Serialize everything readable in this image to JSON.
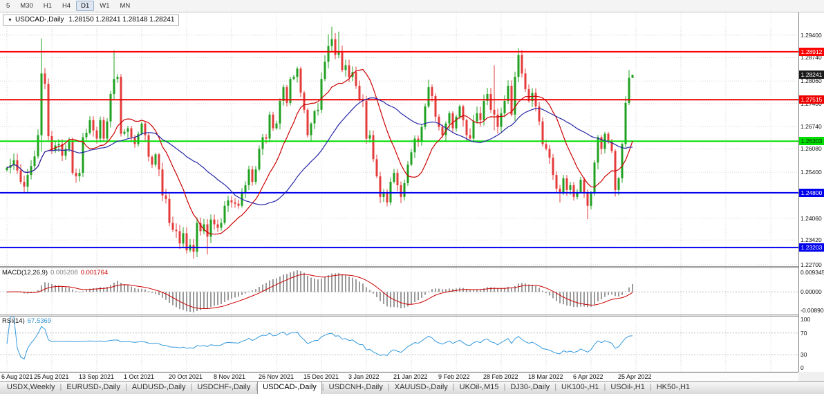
{
  "toolbar": {
    "timeframes": [
      {
        "label": "5",
        "active": false
      },
      {
        "label": "M30",
        "active": false
      },
      {
        "label": "H1",
        "active": false
      },
      {
        "label": "H4",
        "active": false
      },
      {
        "label": "D1",
        "active": true
      },
      {
        "label": "W1",
        "active": false
      },
      {
        "label": "MN",
        "active": false
      }
    ]
  },
  "chart": {
    "title_symbol": "USDCAD-,Daily",
    "ohlc_text": "1.28150 1.28241 1.28148 1.28241",
    "y_ticks": [
      "1.29400",
      "1.28740",
      "1.28060",
      "1.27400",
      "1.26740",
      "1.26080",
      "1.25400",
      "1.24060",
      "1.23420",
      "1.22700"
    ],
    "levels": [
      {
        "label": "1.28912",
        "value": 1.28912,
        "color": "#ff0000",
        "text_color": "#ffffff",
        "width": 2
      },
      {
        "label": "1.27515",
        "value": 1.27515,
        "color": "#ee0000",
        "text_color": "#ffffff",
        "width": 2
      },
      {
        "label": "1.26303",
        "value": 1.26303,
        "color": "#00dd00",
        "text_color": "#003300",
        "width": 2
      },
      {
        "label": "1.24800",
        "value": 1.248,
        "color": "#0000ee",
        "text_color": "#ffffff",
        "width": 2
      },
      {
        "label": "1.23203",
        "value": 1.23203,
        "color": "#0000ee",
        "text_color": "#ffffff",
        "width": 2
      }
    ],
    "current_price": {
      "label": "1.28241",
      "value": 1.28241,
      "color": "#1a1a1a",
      "text_color": "#ffffff"
    }
  },
  "indicators": {
    "macd": {
      "label": "MACD(12,26,9)",
      "value_main": "0.005208",
      "value_signal": "0.001764",
      "params": [
        12,
        26,
        9
      ],
      "ticks": [
        "0.009345",
        "0.00000",
        "-0.00890"
      ]
    },
    "rsi": {
      "label": "RSI(14)",
      "value": "67.5369",
      "period": 14,
      "ticks": [
        "100",
        "70",
        "30",
        "0"
      ],
      "levels": [
        70,
        30
      ]
    }
  },
  "x_labels": [
    "6 Aug 2021",
    "25 Aug 2021",
    "13 Sep 2021",
    "1 Oct 2021",
    "20 Oct 2021",
    "8 Nov 2021",
    "26 Nov 2021",
    "15 Dec 2021",
    "3 Jan 2022",
    "21 Jan 2022",
    "9 Feb 2022",
    "28 Feb 2022",
    "18 Mar 2022",
    "6 Apr 2022",
    "25 Apr 2022"
  ],
  "tabs": [
    {
      "label": "USDX,Weekly",
      "active": false
    },
    {
      "label": "EURUSD-,Daily",
      "active": false
    },
    {
      "label": "AUDUSD-,Daily",
      "active": false
    },
    {
      "label": "USDCHF-,Daily",
      "active": false
    },
    {
      "label": "USDCAD-,Daily",
      "active": true
    },
    {
      "label": "USDCNH-,Daily",
      "active": false
    },
    {
      "label": "XAUUSD-,Daily",
      "active": false
    },
    {
      "label": "UKOil-,M15",
      "active": false
    },
    {
      "label": "DJ30-,Daily",
      "active": false
    },
    {
      "label": "UK100-,H1",
      "active": false
    },
    {
      "label": "USOil-,H1",
      "active": false
    },
    {
      "label": "HK50-,H1",
      "active": false
    }
  ],
  "colors": {
    "bull": "#21a121",
    "bear": "#e43b3b",
    "ma_fast": "#cc0000",
    "ma_slow": "#2525a8",
    "macd_hist": "#9a9a9a",
    "macd_signal": "#cc0000",
    "rsi": "#3399dd",
    "grid": "#d6d6d6",
    "sublevel": "#bdbdbd"
  },
  "chart_data": {
    "type": "candlestick",
    "symbol": "USDCAD-",
    "timeframe": "Daily",
    "last_bar": {
      "open": 1.2815,
      "high": 1.28241,
      "low": 1.28148,
      "close": 1.28241
    },
    "price_range": {
      "top": 1.3006,
      "bottom": 1.2266
    },
    "first_open": 1.2546,
    "closes": [
      1.2553,
      1.256,
      1.2575,
      1.2545,
      1.2512,
      1.2498,
      1.2532,
      1.2558,
      1.2586,
      1.2648,
      1.2828,
      1.2798,
      1.2645,
      1.2602,
      1.2618,
      1.2622,
      1.2588,
      1.2608,
      1.2628,
      1.2538,
      1.2528,
      1.2538,
      1.2642,
      1.2655,
      1.2692,
      1.2662,
      1.2638,
      1.2692,
      1.2638,
      1.2688,
      1.2768,
      1.2812,
      1.2818,
      1.2652,
      1.2658,
      1.2668,
      1.2642,
      1.2622,
      1.2652,
      1.2682,
      1.2648,
      1.2585,
      1.2562,
      1.2592,
      1.2548,
      1.2472,
      1.2462,
      1.2392,
      1.2372,
      1.2368,
      1.2332,
      1.2362,
      1.2312,
      1.2328,
      1.2308,
      1.2392,
      1.2368,
      1.2388,
      1.2352,
      1.2402,
      1.2388,
      1.2378,
      1.2392,
      1.2442,
      1.2458,
      1.2452,
      1.2448,
      1.2442,
      1.2482,
      1.2502,
      1.2548,
      1.2512,
      1.2548,
      1.2608,
      1.2642,
      1.2638,
      1.2708,
      1.2668,
      1.2682,
      1.2748,
      1.2788,
      1.2742,
      1.2812,
      1.2818,
      1.2842,
      1.2772,
      1.2722,
      1.2648,
      1.2682,
      1.2718,
      1.2722,
      1.2812,
      1.2862,
      1.2908,
      1.2928,
      1.2882,
      1.2892,
      1.2838,
      1.2852,
      1.2818,
      1.2832,
      1.2792,
      1.2752,
      1.2748,
      1.2638,
      1.2648,
      1.2578,
      1.2528,
      1.2468,
      1.2478,
      1.2452,
      1.2512,
      1.2538,
      1.2502,
      1.2468,
      1.2508,
      1.2562,
      1.2598,
      1.2638,
      1.2628,
      1.2672,
      1.2732,
      1.2788,
      1.2762,
      1.2702,
      1.2672,
      1.2648,
      1.2682,
      1.2712,
      1.2668,
      1.2702,
      1.2732,
      1.2692,
      1.2648,
      1.2638,
      1.2688,
      1.2712,
      1.2692,
      1.2748,
      1.2768,
      1.2722,
      1.2708,
      1.2672,
      1.2712,
      1.2748,
      1.2792,
      1.2708,
      1.2818,
      1.2882,
      1.2828,
      1.2782,
      1.2748,
      1.2772,
      1.2732,
      1.2688,
      1.2622,
      1.2608,
      1.2582,
      1.2532,
      1.2492,
      1.2478,
      1.2522,
      1.2488,
      1.2502,
      1.2468,
      1.2482,
      1.2518,
      1.2482,
      1.2442,
      1.2478,
      1.2568,
      1.2642,
      1.2608,
      1.2652,
      1.2632,
      1.2602,
      1.2488,
      1.2522,
      1.2622,
      1.2742,
      1.2815,
      1.28241
    ],
    "wick_overrides": {
      "10": [
        1.293,
        1.26
      ],
      "31": [
        1.2895,
        null
      ],
      "54": [
        null,
        1.2288
      ],
      "58": [
        null,
        1.23
      ],
      "93": [
        1.2942,
        null
      ],
      "94": [
        1.2964,
        null
      ],
      "96": [
        1.295,
        null
      ],
      "114": [
        null,
        1.245
      ],
      "122": [
        1.281,
        null
      ],
      "134": [
        null,
        1.2635
      ],
      "141": [
        1.2852,
        1.2662
      ],
      "148": [
        1.2902,
        null
      ],
      "160": [
        null,
        1.2452
      ],
      "168": [
        null,
        1.2403
      ],
      "180": [
        1.2838,
        null
      ],
      "181": [
        1.28241,
        1.28148
      ]
    },
    "overlays": [
      {
        "name": "ma-fast",
        "period": 13,
        "color": "#cc0000"
      },
      {
        "name": "ma-slow",
        "period": 34,
        "color": "#2525a8"
      }
    ]
  }
}
